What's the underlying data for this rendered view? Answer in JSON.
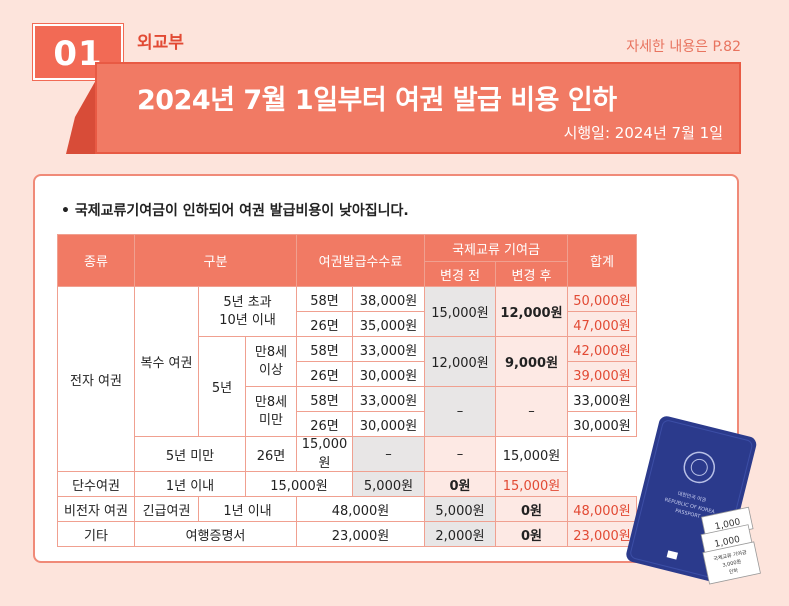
{
  "header": {
    "number": "01",
    "ministry": "외교부",
    "ref": "자세한 내용은 P.82",
    "title": "2024년 7월 1일부터 여권 발급 비용 인하",
    "date": "시행일: 2024년 7월 1일"
  },
  "bullet": "•  국제교류기여금이 인하되어 여권 발급비용이 낮아집니다.",
  "table": {
    "h_type": "종류",
    "h_cat": "구분",
    "h_fee": "여권발급수수료",
    "h_contrib": "국제교류 기여금",
    "h_before": "변경 전",
    "h_after": "변경 후",
    "h_total": "합계",
    "electronic": "전자 여권",
    "multi": "복수 여권",
    "over5": "5년 초과\n10년 이내",
    "y5": "5년",
    "age8up": "만8세\n이상",
    "age8down": "만8세\n미만",
    "under5": "5년 미만",
    "single": "단수여권",
    "nonelectronic": "비전자 여권",
    "emergency": "긴급여권",
    "within1": "1년 이내",
    "etc": "기타",
    "travel": "여행증명서",
    "p58": "58면",
    "p26": "26면",
    "f38000": "38,000원",
    "f35000": "35,000원",
    "f33000": "33,000원",
    "f30000": "30,000원",
    "f15000": "15,000원",
    "f48000": "48,000원",
    "f23000": "23,000원",
    "c15000": "15,000원",
    "c12000": "12,000원",
    "c12000b": "12,000원",
    "c9000": "9,000원",
    "dash": "–",
    "c5000": "5,000원",
    "c2000": "2,000원",
    "c0": "0원",
    "t50000": "50,000원",
    "t47000": "47,000원",
    "t42000": "42,000원",
    "t39000": "39,000원",
    "t33000": "33,000원",
    "t30000": "30,000원",
    "t15000": "15,000원",
    "t15000b": "15,000원",
    "t48000": "48,000원",
    "t23000": "23,000원"
  },
  "passport": {
    "line1": "대한민국 여권",
    "line2": "REPUBLIC OF KOREA",
    "line3": "PASSPORT",
    "tag1": "1,000",
    "tag2": "1,000",
    "tag3": "국제교류 기여금",
    "tag4": "3,000원",
    "tag5": "인하"
  },
  "colors": {
    "accent": "#f17a64",
    "dark_accent": "#e24a34",
    "bg": "#fde4dc",
    "passport": "#2b3a8c"
  }
}
